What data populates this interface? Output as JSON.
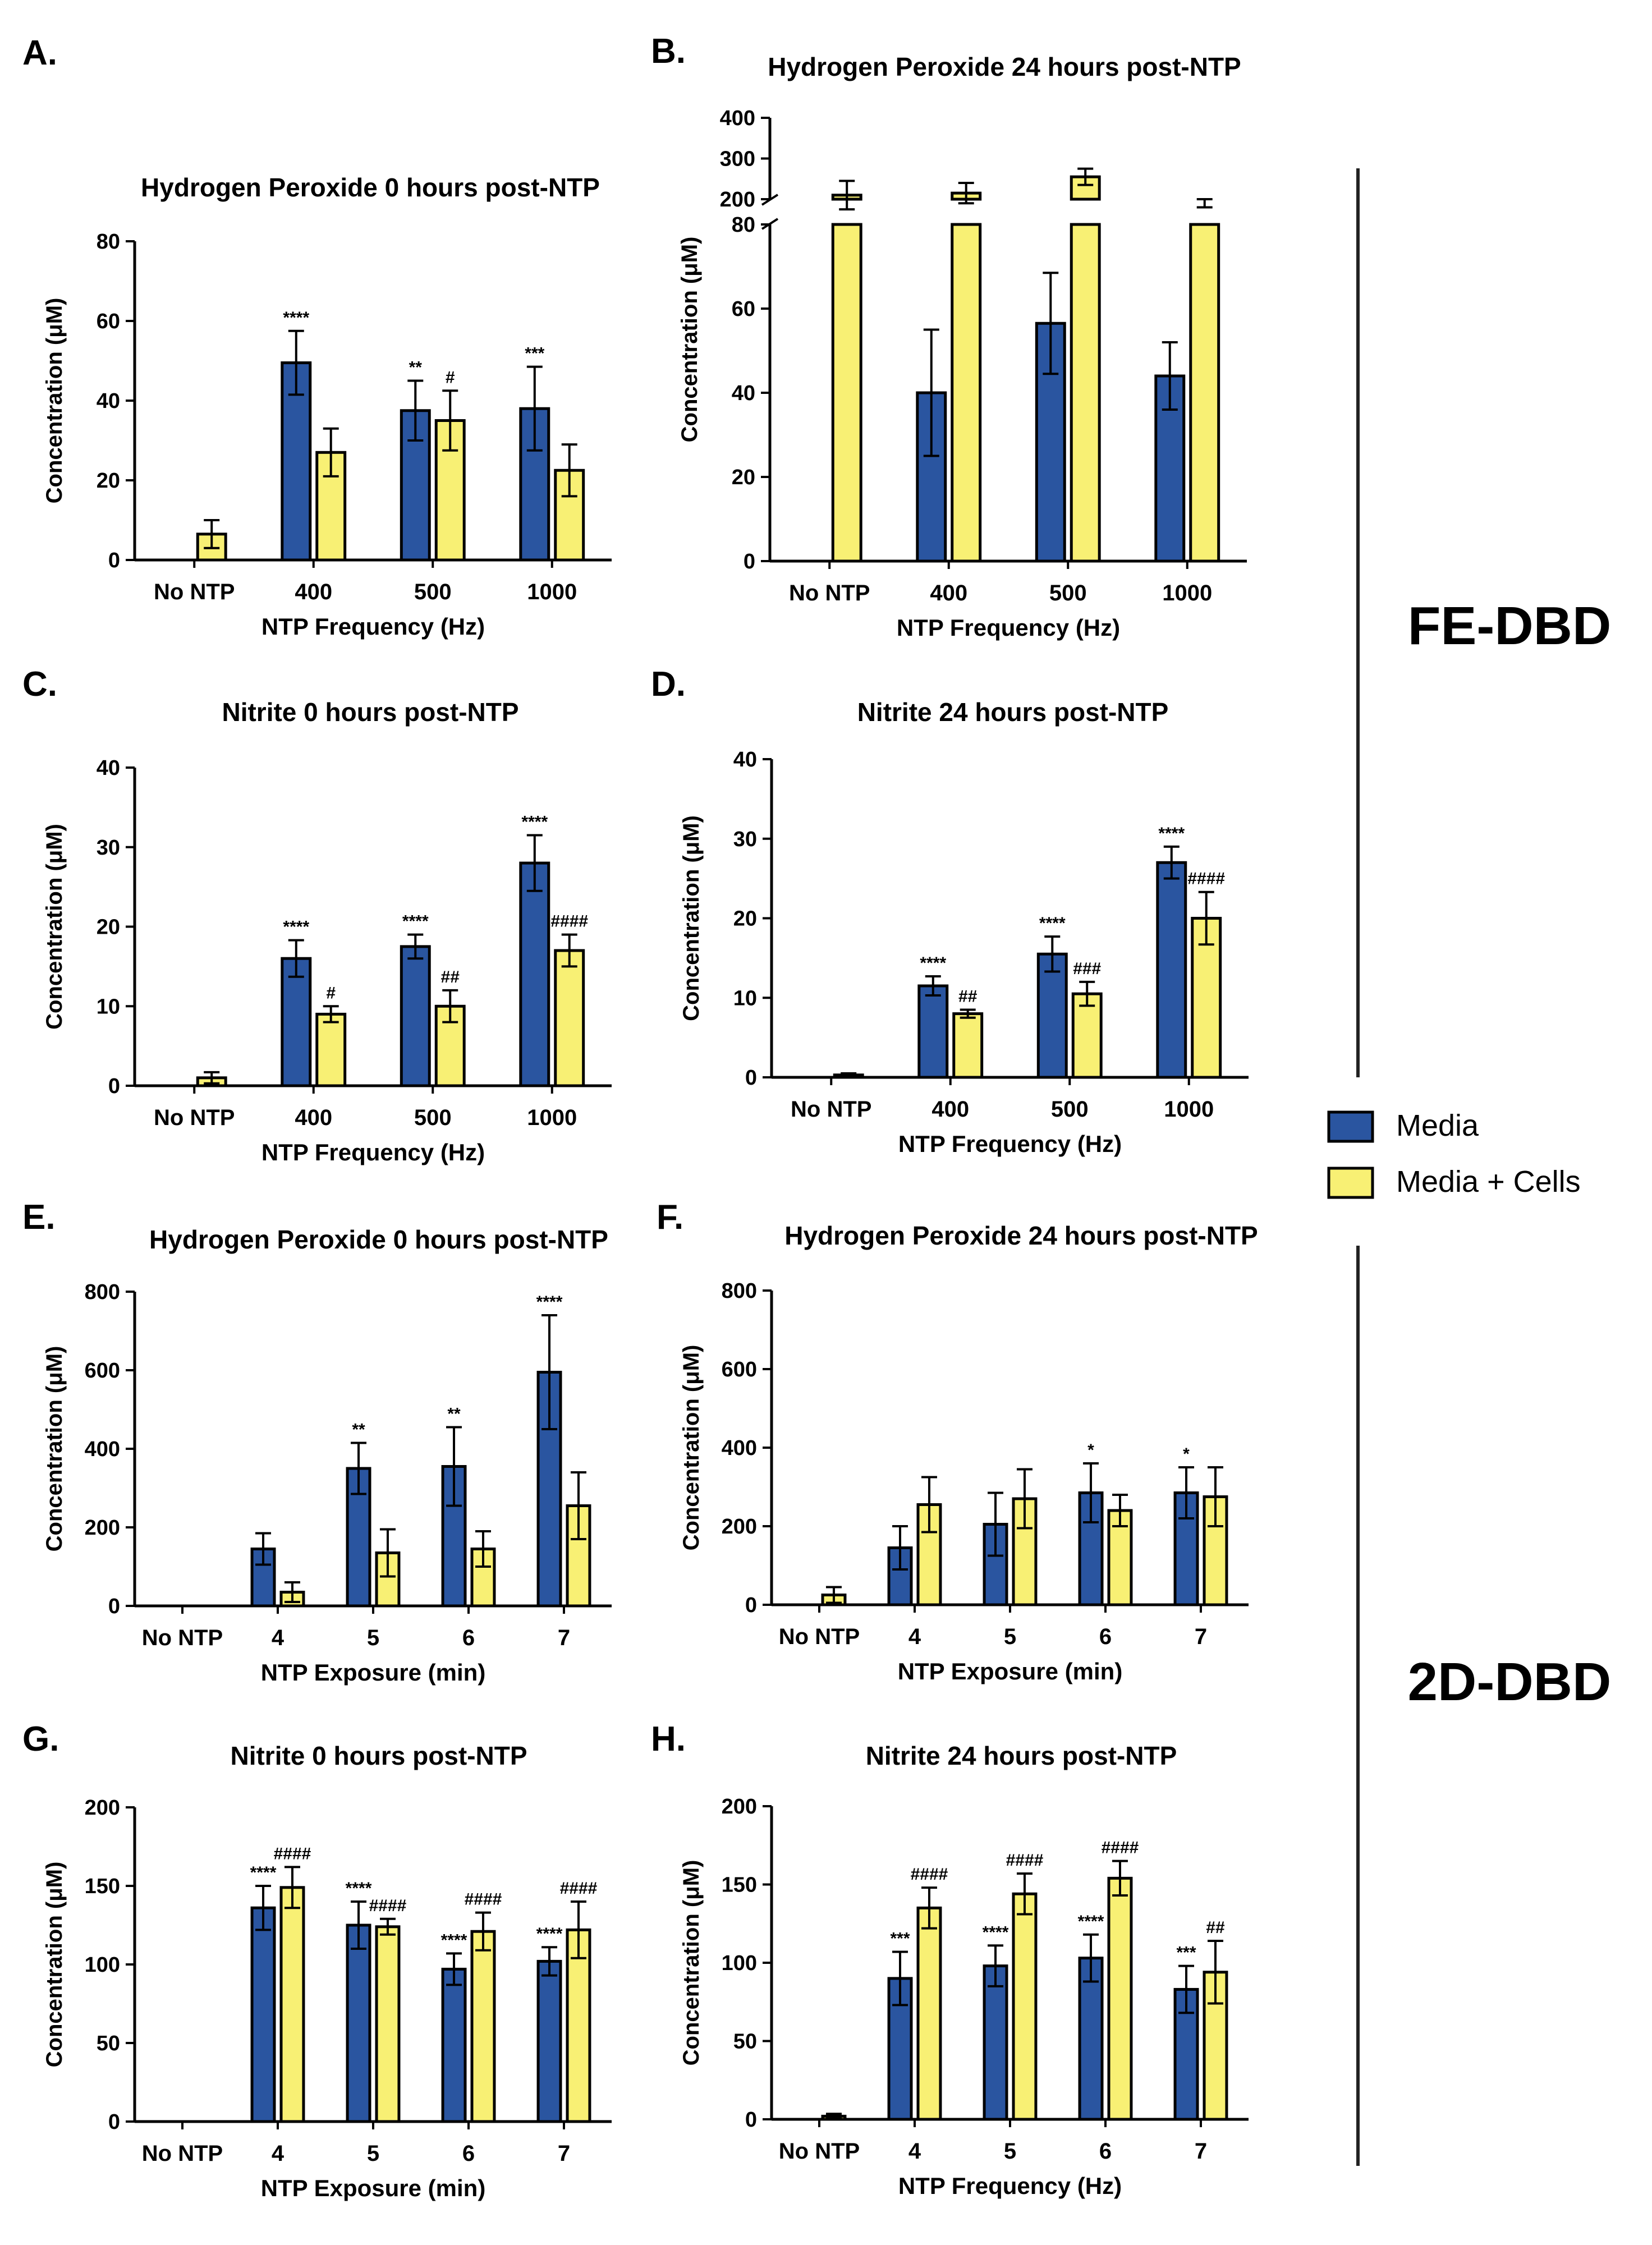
{
  "colors": {
    "media": "#2a55a0",
    "cells": "#f8f074",
    "axis": "#000000",
    "divider": "#222222"
  },
  "groups": {
    "fe": "FE-DBD",
    "d2": "2D-DBD"
  },
  "legend": [
    {
      "label": "Media",
      "color": "#2a55a0"
    },
    {
      "label": "Media + Cells",
      "color": "#f8f074"
    }
  ],
  "chart_data": [
    {
      "id": "A",
      "letter": "A.",
      "type": "bar",
      "title": "Hydrogen Peroxide 0 hours post-NTP",
      "ylabel": "Concentration (μM)",
      "xlabel": "NTP Frequency (Hz)",
      "categories": [
        "No NTP",
        "400",
        "500",
        "1000"
      ],
      "ylim": [
        0,
        80
      ],
      "yticks": [
        0,
        20,
        40,
        60,
        80
      ],
      "series": [
        {
          "name": "Media",
          "values": [
            0,
            49.5,
            37.5,
            38
          ],
          "errors": [
            0,
            8,
            7.5,
            10.5
          ],
          "labels": [
            "",
            "****",
            "**",
            "***"
          ]
        },
        {
          "name": "Media + Cells",
          "values": [
            6.5,
            27,
            35,
            22.5
          ],
          "errors": [
            3.5,
            6,
            7.5,
            6.5
          ],
          "labels": [
            "",
            "",
            "#",
            ""
          ]
        }
      ]
    },
    {
      "id": "B",
      "letter": "B.",
      "type": "bar",
      "title": "Hydrogen Peroxide 24 hours post-NTP",
      "ylabel": "Concentration (μM)",
      "xlabel": "NTP Frequency (Hz)",
      "categories": [
        "No NTP",
        "400",
        "500",
        "1000"
      ],
      "ylim": [
        0,
        80
      ],
      "yticks": [
        0,
        20,
        40,
        60,
        80
      ],
      "upper_range": [
        200,
        400
      ],
      "upper_ticks": [
        200,
        300,
        400
      ],
      "series": [
        {
          "name": "Media",
          "values": [
            0,
            40,
            56.5,
            44
          ],
          "errors": [
            0,
            15,
            12,
            8
          ],
          "labels": [
            "",
            "",
            "",
            ""
          ]
        },
        {
          "name": "Media + Cells",
          "values": [
            210,
            215,
            255,
            190
          ],
          "errors": [
            35,
            25,
            20,
            10
          ],
          "labels": [
            "",
            "",
            "",
            ""
          ]
        }
      ]
    },
    {
      "id": "C",
      "letter": "C.",
      "type": "bar",
      "title": "Nitrite 0 hours post-NTP",
      "ylabel": "Concentration (μM)",
      "xlabel": "NTP Frequency (Hz)",
      "categories": [
        "No NTP",
        "400",
        "500",
        "1000"
      ],
      "ylim": [
        0,
        40
      ],
      "yticks": [
        0,
        10,
        20,
        30,
        40
      ],
      "series": [
        {
          "name": "Media",
          "values": [
            0,
            16,
            17.5,
            28
          ],
          "errors": [
            0,
            2.3,
            1.5,
            3.5
          ],
          "labels": [
            "",
            "****",
            "****",
            "****"
          ]
        },
        {
          "name": "Media + Cells",
          "values": [
            1,
            9,
            10,
            17
          ],
          "errors": [
            0.7,
            1,
            2,
            2
          ],
          "labels": [
            "",
            "#",
            "##",
            "####"
          ]
        }
      ]
    },
    {
      "id": "D",
      "letter": "D.",
      "type": "bar",
      "title": "Nitrite 24 hours post-NTP",
      "ylabel": "Concentration (μM)",
      "xlabel": "NTP Frequency (Hz)",
      "categories": [
        "No NTP",
        "400",
        "500",
        "1000"
      ],
      "ylim": [
        0,
        40
      ],
      "yticks": [
        0,
        10,
        20,
        30,
        40
      ],
      "series": [
        {
          "name": "Media",
          "values": [
            0,
            11.5,
            15.5,
            27
          ],
          "errors": [
            0,
            1.2,
            2.2,
            2
          ],
          "labels": [
            "",
            "****",
            "****",
            "****"
          ]
        },
        {
          "name": "Media + Cells",
          "values": [
            0.3,
            8,
            10.5,
            20
          ],
          "errors": [
            0.2,
            0.5,
            1.5,
            3.3
          ],
          "labels": [
            "",
            "##",
            "###",
            "####"
          ]
        }
      ]
    },
    {
      "id": "E",
      "letter": "E.",
      "type": "bar",
      "title": "Hydrogen Peroxide 0 hours post-NTP",
      "ylabel": "Concentration (μM)",
      "xlabel": "NTP Exposure (min)",
      "categories": [
        "No NTP",
        "4",
        "5",
        "6",
        "7"
      ],
      "ylim": [
        0,
        800
      ],
      "yticks": [
        0,
        200,
        400,
        600,
        800
      ],
      "series": [
        {
          "name": "Media",
          "values": [
            0,
            145,
            350,
            355,
            595
          ],
          "errors": [
            0,
            40,
            65,
            100,
            145
          ],
          "labels": [
            "",
            "",
            "**",
            "**",
            "****"
          ]
        },
        {
          "name": "Media + Cells",
          "values": [
            0,
            35,
            135,
            145,
            255
          ],
          "errors": [
            0,
            25,
            60,
            45,
            85
          ],
          "labels": [
            "",
            "",
            "",
            "",
            ""
          ]
        }
      ]
    },
    {
      "id": "F",
      "letter": "F.",
      "type": "bar",
      "title": "Hydrogen Peroxide 24 hours post-NTP",
      "ylabel": "Concentration (μM)",
      "xlabel": "NTP Exposure (min)",
      "categories": [
        "No NTP",
        "4",
        "5",
        "6",
        "7"
      ],
      "ylim": [
        0,
        800
      ],
      "yticks": [
        0,
        200,
        400,
        600,
        800
      ],
      "series": [
        {
          "name": "Media",
          "values": [
            0,
            145,
            205,
            285,
            285
          ],
          "errors": [
            0,
            55,
            80,
            75,
            65
          ],
          "labels": [
            "",
            "",
            "",
            "*",
            "*"
          ]
        },
        {
          "name": "Media + Cells",
          "values": [
            25,
            255,
            270,
            240,
            275
          ],
          "errors": [
            20,
            70,
            75,
            40,
            75
          ],
          "labels": [
            "",
            "",
            "",
            "",
            ""
          ]
        }
      ]
    },
    {
      "id": "G",
      "letter": "G.",
      "type": "bar",
      "title": "Nitrite 0 hours post-NTP",
      "ylabel": "Concentration (μM)",
      "xlabel": "NTP Exposure (min)",
      "categories": [
        "No NTP",
        "4",
        "5",
        "6",
        "7"
      ],
      "ylim": [
        0,
        200
      ],
      "yticks": [
        0,
        50,
        100,
        150,
        200
      ],
      "series": [
        {
          "name": "Media",
          "values": [
            0,
            136,
            125,
            97,
            102
          ],
          "errors": [
            0,
            14,
            15,
            10,
            9
          ],
          "labels": [
            "",
            "****",
            "****",
            "****",
            "****"
          ]
        },
        {
          "name": "Media + Cells",
          "values": [
            0,
            149,
            124,
            121,
            122
          ],
          "errors": [
            0,
            13,
            5,
            12,
            18
          ],
          "labels": [
            "",
            "####",
            "####",
            "####",
            "####"
          ]
        }
      ]
    },
    {
      "id": "H",
      "letter": "H.",
      "type": "bar",
      "title": "Nitrite 24 hours post-NTP",
      "ylabel": "Concentration (μM)",
      "xlabel": "NTP Frequency (Hz)",
      "categories": [
        "No NTP",
        "4",
        "5",
        "6",
        "7"
      ],
      "ylim": [
        0,
        200
      ],
      "yticks": [
        0,
        50,
        100,
        150,
        200
      ],
      "series": [
        {
          "name": "Media",
          "values": [
            0,
            90,
            98,
            103,
            83
          ],
          "errors": [
            0,
            17,
            13,
            15,
            15
          ],
          "labels": [
            "",
            "***",
            "****",
            "****",
            "***"
          ]
        },
        {
          "name": "Media + Cells",
          "values": [
            2,
            135,
            144,
            154,
            94
          ],
          "errors": [
            1.5,
            13,
            13,
            11,
            20
          ],
          "labels": [
            "",
            "####",
            "####",
            "####",
            "##"
          ]
        }
      ]
    }
  ]
}
